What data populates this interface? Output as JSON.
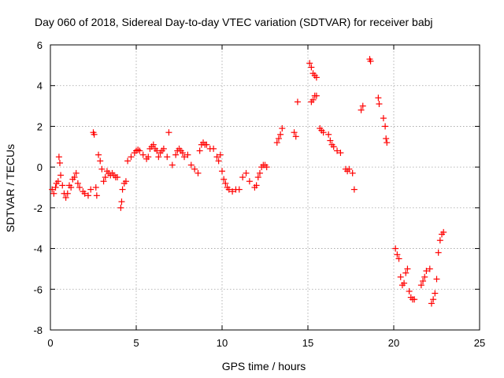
{
  "chart_data": {
    "type": "scatter",
    "title": "Day 060 of 2018, Sidereal Day-to-day VTEC variation (SDTVAR) for receiver babj",
    "xlabel": "GPS time / hours",
    "ylabel": "SDTVAR / TECUs",
    "xlim": [
      0,
      25
    ],
    "ylim": [
      -8,
      6
    ],
    "xticks": [
      "0",
      "5",
      "10",
      "15",
      "20",
      "25"
    ],
    "yticks": [
      "-8",
      "-6",
      "-4",
      "-2",
      "0",
      "2",
      "4",
      "6"
    ],
    "grid": true,
    "marker": "plus",
    "marker_color": "#ff0000",
    "series": [
      {
        "name": "SDTVAR",
        "x": [
          0.1,
          0.2,
          0.3,
          0.35,
          0.45,
          0.5,
          0.55,
          0.6,
          0.7,
          0.8,
          0.9,
          1.0,
          1.1,
          1.2,
          1.3,
          1.4,
          1.5,
          1.6,
          1.7,
          1.9,
          2.0,
          2.2,
          2.35,
          2.5,
          2.55,
          2.65,
          2.7,
          2.8,
          2.9,
          3.0,
          3.1,
          3.2,
          3.3,
          3.4,
          3.5,
          3.6,
          3.7,
          3.8,
          3.9,
          4.1,
          4.15,
          4.2,
          4.3,
          4.4,
          4.5,
          4.7,
          4.9,
          5.0,
          5.1,
          5.2,
          5.4,
          5.6,
          5.7,
          5.8,
          5.9,
          6.0,
          6.1,
          6.2,
          6.3,
          6.4,
          6.5,
          6.6,
          6.8,
          6.9,
          7.1,
          7.3,
          7.4,
          7.5,
          7.6,
          7.7,
          7.8,
          8.0,
          8.2,
          8.4,
          8.6,
          8.7,
          8.8,
          8.9,
          9.0,
          9.1,
          9.3,
          9.5,
          9.7,
          9.8,
          9.9,
          10.0,
          10.1,
          10.2,
          10.3,
          10.4,
          10.6,
          10.8,
          11.0,
          11.2,
          11.4,
          11.6,
          11.9,
          12.0,
          12.1,
          12.2,
          12.3,
          12.4,
          12.5,
          12.6,
          13.2,
          13.3,
          13.4,
          13.5,
          14.2,
          14.3,
          14.4,
          15.1,
          15.2,
          15.3,
          15.4,
          15.5,
          15.2,
          15.3,
          15.4,
          15.5,
          15.7,
          15.8,
          15.9,
          16.2,
          16.3,
          16.4,
          16.5,
          16.7,
          16.9,
          17.2,
          17.3,
          17.4,
          17.6,
          17.7,
          18.1,
          18.2,
          18.6,
          18.65,
          19.1,
          19.15,
          19.4,
          19.5,
          19.55,
          19.6,
          20.1,
          20.2,
          20.3,
          20.4,
          20.5,
          20.6,
          20.7,
          20.8,
          20.9,
          21.0,
          21.1,
          21.2,
          21.6,
          21.7,
          21.8,
          21.9,
          22.1,
          22.2,
          22.3,
          22.4,
          22.5,
          22.6,
          22.7,
          22.8,
          22.9
        ],
        "y": [
          -1.1,
          -1.3,
          -1.0,
          -0.8,
          -0.7,
          0.5,
          0.2,
          -0.4,
          -0.9,
          -1.3,
          -1.5,
          -1.3,
          -0.9,
          -1.0,
          -0.6,
          -0.5,
          -0.3,
          -0.8,
          -1.0,
          -1.2,
          -1.3,
          -1.4,
          -1.1,
          1.7,
          1.6,
          -1.0,
          -1.4,
          0.6,
          0.3,
          -0.1,
          -0.7,
          -0.5,
          -0.2,
          -0.3,
          -0.4,
          -0.3,
          -0.4,
          -0.5,
          -0.5,
          -2.0,
          -1.7,
          -1.1,
          -0.8,
          -0.7,
          0.3,
          0.5,
          0.7,
          0.8,
          0.85,
          0.8,
          0.6,
          0.4,
          0.5,
          0.9,
          1.0,
          1.1,
          0.9,
          0.8,
          0.5,
          0.7,
          0.8,
          0.9,
          0.5,
          1.7,
          0.1,
          0.6,
          0.8,
          0.9,
          0.8,
          0.7,
          0.5,
          0.6,
          0.1,
          -0.1,
          -0.3,
          0.8,
          1.1,
          1.2,
          1.1,
          1.1,
          0.9,
          0.9,
          0.5,
          0.3,
          0.6,
          -0.2,
          -0.6,
          -0.8,
          -1.0,
          -1.1,
          -1.2,
          -1.1,
          -1.1,
          -0.5,
          -0.3,
          -0.7,
          -1.0,
          -0.9,
          -0.5,
          -0.3,
          0.0,
          0.1,
          0.1,
          0.0,
          1.2,
          1.4,
          1.6,
          1.9,
          1.7,
          1.5,
          3.2,
          5.1,
          4.9,
          4.6,
          4.5,
          4.4,
          3.2,
          3.3,
          3.5,
          3.5,
          1.9,
          1.8,
          1.7,
          1.6,
          1.3,
          1.1,
          1.0,
          0.8,
          0.7,
          -0.1,
          -0.2,
          -0.1,
          -0.3,
          -1.1,
          2.8,
          3.0,
          5.3,
          5.2,
          3.4,
          3.1,
          2.4,
          2.0,
          1.4,
          1.2,
          -4.0,
          -4.3,
          -4.5,
          -5.4,
          -5.8,
          -5.7,
          -5.2,
          -5.0,
          -6.1,
          -6.4,
          -6.5,
          -6.5,
          -5.8,
          -5.6,
          -5.4,
          -5.1,
          -5.0,
          -6.7,
          -6.5,
          -6.2,
          -5.5,
          -4.2,
          -3.6,
          -3.3,
          -3.2
        ]
      }
    ]
  }
}
